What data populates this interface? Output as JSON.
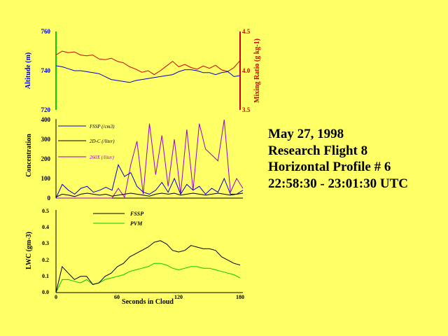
{
  "caption": {
    "line1": "May 27, 1998",
    "line2": "Research Flight 8",
    "line3": "Horizontal Profile # 6",
    "line4": "22:58:30 - 23:01:30 UTC"
  },
  "colors": {
    "background": "#ffff66",
    "altitude": "#0000cc",
    "mixing_ratio": "#cc0000",
    "left_axis_altitude": "#00cc00",
    "fssp": "#0000cc",
    "twodc": "#000000",
    "twodx": "#9900cc",
    "lwc_fssp": "#000000",
    "lwc_pvm": "#00cc00"
  },
  "chart_data": [
    {
      "type": "line",
      "x": [
        0,
        6,
        12,
        18,
        24,
        30,
        36,
        42,
        48,
        54,
        60,
        66,
        72,
        78,
        84,
        90,
        96,
        102,
        108,
        114,
        120,
        126,
        132,
        138,
        144,
        150,
        156,
        162,
        168,
        174,
        180
      ],
      "series": [
        {
          "name": "Altitude",
          "axis": "left",
          "values": [
            742.5,
            742,
            741,
            740,
            740,
            739.5,
            739,
            738.5,
            737,
            735.5,
            735,
            734.5,
            734,
            735,
            735.5,
            736,
            736.5,
            737,
            737.5,
            738,
            739.5,
            740.5,
            740.5,
            740,
            739,
            739,
            738,
            739,
            739.5,
            737,
            737.5
          ]
        },
        {
          "name": "Mixing Ratio",
          "axis": "right",
          "values": [
            4.2,
            4.25,
            4.23,
            4.24,
            4.2,
            4.19,
            4.2,
            4.15,
            4.14,
            4.16,
            4.12,
            4.1,
            4.05,
            4.02,
            3.98,
            4.0,
            3.95,
            4.0,
            4.06,
            4.12,
            4.05,
            4.08,
            4.04,
            4.02,
            4.06,
            4.03,
            4.07,
            4.01,
            3.99,
            4.04,
            4.13
          ]
        }
      ],
      "ylabel": "Altitude (m)",
      "ylim": [
        720,
        760
      ],
      "yticks": [
        "720",
        "740",
        "760"
      ],
      "y2label": "Mixing Ratio (g kg-1)",
      "y2lim": [
        3.5,
        4.5
      ],
      "y2ticks": [
        "3.5",
        "4.0",
        "4.5"
      ]
    },
    {
      "type": "line",
      "x": [
        0,
        6,
        12,
        18,
        24,
        30,
        36,
        42,
        48,
        54,
        60,
        66,
        72,
        78,
        84,
        90,
        96,
        102,
        108,
        114,
        120,
        126,
        132,
        138,
        144,
        150,
        156,
        162,
        168,
        174,
        180
      ],
      "series": [
        {
          "name": "FSSP (/cm3)",
          "values": [
            0,
            70,
            40,
            20,
            50,
            60,
            30,
            40,
            55,
            40,
            170,
            110,
            130,
            60,
            30,
            20,
            40,
            80,
            30,
            100,
            20,
            70,
            40,
            60,
            20,
            50,
            30,
            100,
            20,
            20,
            40
          ]
        },
        {
          "name": "2D-C (/liter)",
          "values": [
            5,
            20,
            15,
            8,
            20,
            25,
            20,
            15,
            20,
            10,
            15,
            20,
            25,
            20,
            15,
            10,
            20,
            25,
            20,
            25,
            15,
            20,
            25,
            20,
            15,
            20,
            25,
            20,
            15,
            20,
            25
          ]
        },
        {
          "name": "260X (/liter)",
          "values": [
            0,
            0,
            0,
            0,
            0,
            0,
            0,
            0,
            0,
            0,
            50,
            5,
            170,
            290,
            20,
            380,
            120,
            320,
            60,
            300,
            20,
            350,
            40,
            380,
            250,
            220,
            190,
            400,
            30,
            100,
            50
          ]
        }
      ],
      "ylabel": "Concentration",
      "ylim": [
        0,
        400
      ],
      "yticks": [
        "0",
        "100",
        "200",
        "300",
        "400"
      ]
    },
    {
      "type": "line",
      "x": [
        0,
        6,
        12,
        18,
        24,
        30,
        36,
        42,
        48,
        54,
        60,
        66,
        72,
        78,
        84,
        90,
        96,
        102,
        108,
        114,
        120,
        126,
        132,
        138,
        144,
        150,
        156,
        162,
        168,
        174,
        180
      ],
      "series": [
        {
          "name": "FSSP",
          "values": [
            0.0,
            0.16,
            0.12,
            0.08,
            0.1,
            0.1,
            0.05,
            0.06,
            0.1,
            0.12,
            0.16,
            0.18,
            0.22,
            0.24,
            0.26,
            0.28,
            0.31,
            0.32,
            0.3,
            0.26,
            0.25,
            0.26,
            0.29,
            0.28,
            0.27,
            0.27,
            0.26,
            0.22,
            0.2,
            0.18,
            0.17
          ]
        },
        {
          "name": "PVM",
          "values": [
            0.0,
            0.08,
            0.08,
            0.07,
            0.06,
            0.08,
            0.05,
            0.06,
            0.08,
            0.09,
            0.1,
            0.11,
            0.13,
            0.14,
            0.15,
            0.16,
            0.18,
            0.18,
            0.17,
            0.15,
            0.14,
            0.15,
            0.16,
            0.16,
            0.15,
            0.15,
            0.14,
            0.13,
            0.12,
            0.11,
            0.09
          ]
        }
      ],
      "ylabel": "LWC (gm-3)",
      "xlabel": "Seconds in Cloud",
      "xlim": [
        0,
        180
      ],
      "ylim": [
        0,
        0.5
      ],
      "xticks": [
        "0",
        "60",
        "120",
        "180"
      ],
      "yticks": [
        "0.0",
        "0.1",
        "0.2",
        "0.3",
        "0.4",
        "0.5"
      ]
    }
  ]
}
